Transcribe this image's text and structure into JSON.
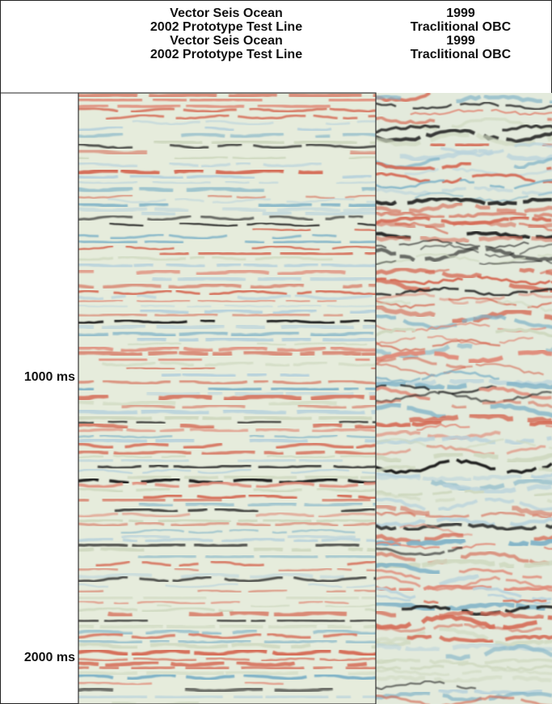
{
  "header": {
    "left": [
      "Vector Seis Ocean",
      "2002 Prototype Test Line",
      "Vector Seis Ocean",
      "2002 Prototype Test Line"
    ],
    "right": [
      "1999",
      "Traclitional OBC",
      "1999",
      "Traclitional OBC"
    ]
  },
  "time_labels": [
    "1000 ms",
    "2000 ms"
  ]
}
